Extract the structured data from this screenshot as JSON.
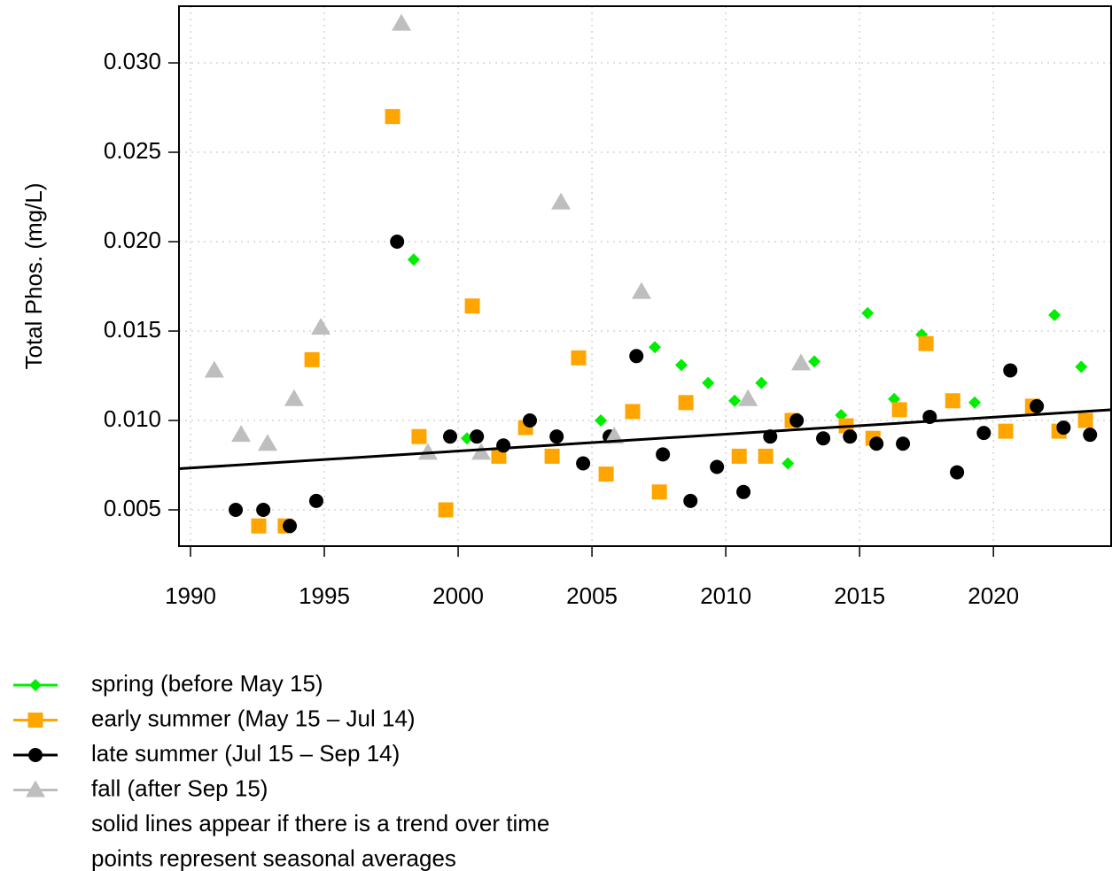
{
  "chart_data": {
    "type": "scatter",
    "y_label": "Total Phos. (mg/L)",
    "xlim": [
      1989.57,
      2024.43
    ],
    "ylim": [
      0.00297,
      0.03317
    ],
    "xticks": [
      1990,
      1995,
      2000,
      2005,
      2010,
      2015,
      2020
    ],
    "yticks": [
      0.005,
      {
        "value": 0.01,
        "label": "0.010"
      },
      0.015,
      {
        "value": 0.02,
        "label": "0.020"
      },
      0.025,
      {
        "value": 0.03,
        "label": "0.030"
      }
    ],
    "grid": true,
    "series": [
      {
        "name": "spring (before May 15)",
        "color": "#00ee00",
        "marker": "diamond",
        "x": [
          1998.34,
          2000.33,
          2005.33,
          2007.35,
          2008.34,
          2009.34,
          2010.33,
          2011.33,
          2012.32,
          2013.31,
          2014.31,
          2015.3,
          2016.29,
          2017.32,
          2019.3,
          2022.28,
          2023.28
        ],
        "values": [
          0.019,
          0.009,
          0.01,
          0.0141,
          0.0131,
          0.0121,
          0.0111,
          0.0121,
          0.0076,
          0.0133,
          0.0103,
          0.016,
          0.0112,
          0.0148,
          0.011,
          0.0159,
          0.013
        ]
      },
      {
        "name": "early summer (May 15 – Jul 14)",
        "color": "#ffa500",
        "marker": "square",
        "x": [
          1992.55,
          1993.54,
          1994.54,
          1997.55,
          1998.54,
          1999.54,
          2000.53,
          2001.52,
          2002.52,
          2003.51,
          2004.5,
          2005.53,
          2006.52,
          2007.52,
          2008.51,
          2010.5,
          2011.49,
          2012.48,
          2014.5,
          2015.5,
          2016.49,
          2017.48,
          2018.48,
          2020.46,
          2021.46,
          2022.45,
          2023.44
        ],
        "values": [
          0.0041,
          0.0041,
          0.0134,
          0.027,
          0.0091,
          0.005,
          0.0164,
          0.008,
          0.0096,
          0.008,
          0.0135,
          0.007,
          0.0105,
          0.006,
          0.011,
          0.008,
          0.008,
          0.01,
          0.0097,
          0.009,
          0.0106,
          0.0143,
          0.0111,
          0.0094,
          0.0108,
          0.0094,
          0.01
        ]
      },
      {
        "name": "late summer (Jul 15 – Sep 14)",
        "color": "#000000",
        "marker": "circle",
        "x": [
          1991.69,
          1992.72,
          1993.71,
          1994.7,
          1997.72,
          1999.7,
          2000.7,
          2001.69,
          2002.68,
          2003.68,
          2004.67,
          2005.66,
          2006.66,
          2007.65,
          2008.68,
          2009.67,
          2010.66,
          2011.66,
          2012.65,
          2013.64,
          2014.64,
          2015.63,
          2016.62,
          2017.62,
          2018.64,
          2019.64,
          2020.63,
          2021.62,
          2022.62,
          2023.61
        ],
        "values": [
          0.005,
          0.005,
          0.0041,
          0.0055,
          0.02,
          0.0091,
          0.0091,
          0.0086,
          0.01,
          0.0091,
          0.0076,
          0.0091,
          0.0136,
          0.0081,
          0.0055,
          0.0074,
          0.006,
          0.0091,
          0.01,
          0.009,
          0.0091,
          0.0087,
          0.0087,
          0.0102,
          0.0071,
          0.0093,
          0.0128,
          0.0108,
          0.0096,
          0.0092
        ]
      },
      {
        "name": "fall (after Sep 15)",
        "color": "#bebebe",
        "marker": "triangle",
        "x": [
          1990.89,
          1991.89,
          1992.88,
          1993.87,
          1994.87,
          1997.88,
          1998.87,
          2000.86,
          2003.84,
          2005.83,
          2006.85,
          2010.83,
          2012.81
        ],
        "values": [
          0.0128,
          0.0092,
          0.0087,
          0.0112,
          0.0152,
          0.0322,
          0.0082,
          0.0082,
          0.0222,
          0.0091,
          0.0172,
          0.0112,
          0.0132
        ]
      }
    ],
    "trend": {
      "color": "#000000",
      "x": [
        1989.57,
        2024.43
      ],
      "values": [
        0.0073,
        0.0106
      ]
    },
    "notes": [
      "solid lines appear if there is a trend over time",
      "points represent seasonal averages"
    ]
  }
}
